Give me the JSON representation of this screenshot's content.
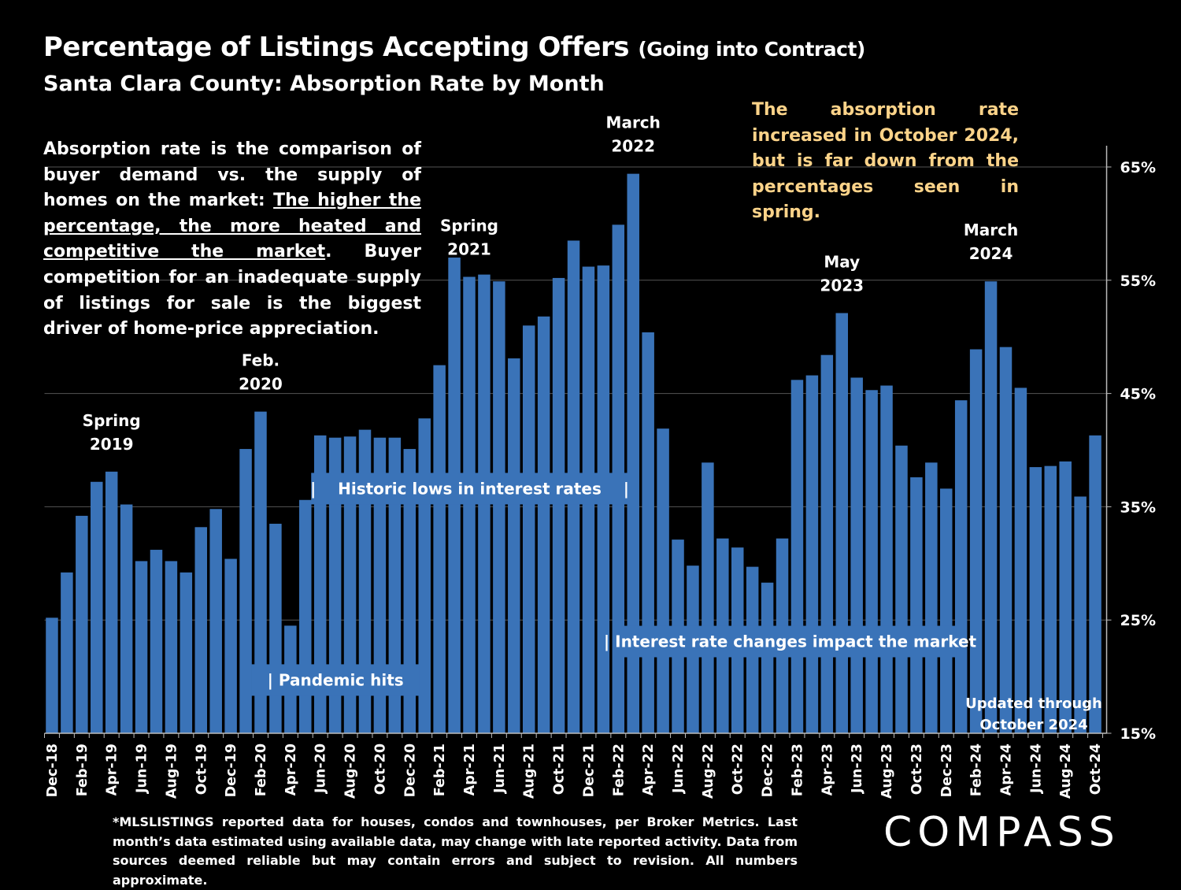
{
  "title": "Percentage of Listings Accepting Offers",
  "title_suffix": "(Going into Contract)",
  "subtitle": "Santa Clara County:  Absorption Rate by Month",
  "description": {
    "intro": "Absorption rate is the comparison of buyer demand vs. the supply of homes on the market: ",
    "emphasis": "The higher the percentage, the more heated and competitive the market",
    "rest": ". Buyer competition for an inadequate supply of listings for sale is the biggest driver of home-price appreciation."
  },
  "note": "The absorption rate increased in October 2024, but is far down from the percentages seen in spring.",
  "footnote": "*MLSLISTINGS reported data for houses, condos and townhouses, per Broker Metrics. Last month’s data estimated using available data, may change with late reported activity. Data from sources deemed reliable but may contain errors and subject to revision. All numbers approximate.",
  "logo": "COMPASS",
  "colors": {
    "bar": "#3a73b8",
    "text": "#ffffff",
    "note": "#fcd389",
    "background": "#000000",
    "grid": "#555555"
  },
  "chart_data": {
    "type": "bar",
    "x_labels_shown_every": 2,
    "categories": [
      "Dec-18",
      "Jan-19",
      "Feb-19",
      "Mar-19",
      "Apr-19",
      "May-19",
      "Jun-19",
      "Jul-19",
      "Aug-19",
      "Sep-19",
      "Oct-19",
      "Nov-19",
      "Dec-19",
      "Jan-20",
      "Feb-20",
      "Mar-20",
      "Apr-20",
      "May-20",
      "Jun-20",
      "Jul-20",
      "Aug-20",
      "Sep-20",
      "Oct-20",
      "Nov-20",
      "Dec-20",
      "Jan-21",
      "Feb-21",
      "Mar-21",
      "Apr-21",
      "May-21",
      "Jun-21",
      "Jul-21",
      "Aug-21",
      "Sep-21",
      "Oct-21",
      "Nov-21",
      "Dec-21",
      "Jan-22",
      "Feb-22",
      "Mar-22",
      "Apr-22",
      "May-22",
      "Jun-22",
      "Jul-22",
      "Aug-22",
      "Sep-22",
      "Oct-22",
      "Nov-22",
      "Dec-22",
      "Jan-23",
      "Feb-23",
      "Mar-23",
      "Apr-23",
      "May-23",
      "Jun-23",
      "Jul-23",
      "Aug-23",
      "Sep-23",
      "Oct-23",
      "Nov-23",
      "Dec-23",
      "Jan-24",
      "Feb-24",
      "Mar-24",
      "Apr-24",
      "May-24",
      "Jun-24",
      "Jul-24",
      "Aug-24",
      "Sep-24",
      "Oct-24"
    ],
    "values": [
      25.2,
      29.2,
      34.2,
      37.2,
      38.1,
      35.2,
      30.2,
      31.2,
      30.2,
      29.2,
      33.2,
      34.8,
      30.4,
      40.1,
      43.4,
      33.5,
      24.5,
      35.6,
      41.3,
      41.1,
      41.2,
      41.8,
      41.1,
      41.1,
      40.1,
      42.8,
      47.5,
      57.0,
      55.3,
      55.5,
      54.9,
      48.1,
      51.0,
      51.8,
      55.2,
      58.5,
      56.2,
      56.3,
      59.9,
      64.4,
      50.4,
      41.9,
      32.1,
      29.8,
      38.9,
      32.2,
      31.4,
      29.7,
      28.3,
      32.2,
      46.2,
      46.6,
      48.4,
      52.1,
      46.4,
      45.3,
      45.7,
      40.4,
      37.6,
      38.9,
      36.6,
      44.4,
      48.9,
      54.9,
      49.1,
      45.5,
      38.5,
      38.6,
      39.0,
      35.9,
      41.3
    ],
    "y_range": [
      15,
      65
    ],
    "y_ticks": [
      "15%",
      "25%",
      "35%",
      "45%",
      "55%",
      "65%"
    ],
    "y_tick_values": [
      15,
      25,
      35,
      45,
      55,
      65
    ],
    "grid": true,
    "y_axis_side": "right",
    "peak_labels": [
      {
        "index": 4,
        "line1": "Spring",
        "line2": "2019"
      },
      {
        "index": 14,
        "line1": "Feb.",
        "line2": "2020"
      },
      {
        "index": 28,
        "line1": "Spring",
        "line2": "2021"
      },
      {
        "index": 39,
        "line1": "March",
        "line2": "2022"
      },
      {
        "index": 53,
        "line1": "May",
        "line2": "2023"
      },
      {
        "index": 63,
        "line1": "March",
        "line2": "2024"
      }
    ],
    "annotations": [
      {
        "text": "|    Historic lows in interest rates    |",
        "from": 18,
        "to": 39,
        "value": 36.6
      },
      {
        "text": "| Pandemic hits",
        "from": 14,
        "to": 25,
        "value": 19.7
      },
      {
        "text": "| Interest rate changes impact the market",
        "from": 39,
        "to": 61,
        "value": 23.1
      }
    ],
    "updated_label": {
      "line1": "Updated through",
      "line2": "October 2024"
    }
  }
}
